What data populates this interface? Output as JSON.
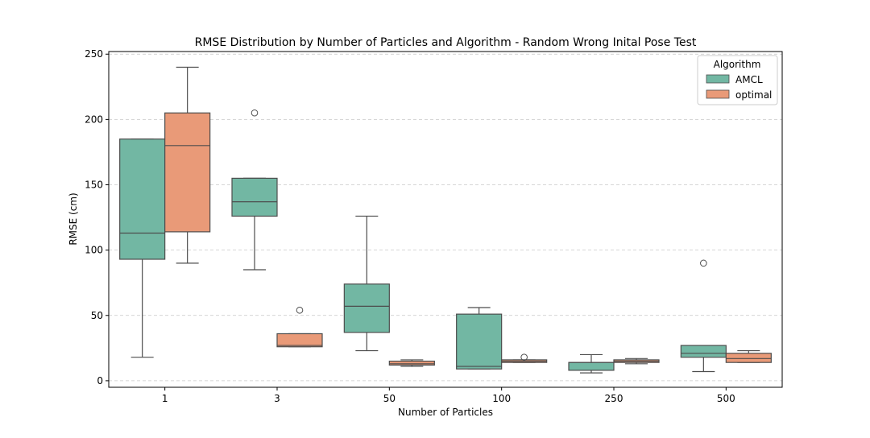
{
  "chart_data": {
    "type": "box",
    "title": "RMSE Distribution by Number of Particles and Algorithm - Random Wrong Inital Pose Test",
    "xlabel": "Number of Particles",
    "ylabel": "RMSE (cm)",
    "ylim": [
      -5,
      252
    ],
    "yticks": [
      0,
      50,
      100,
      150,
      200,
      250
    ],
    "categories": [
      "1",
      "3",
      "50",
      "100",
      "250",
      "500"
    ],
    "grid": "y-dashed",
    "legend": {
      "title": "Algorithm",
      "placement": "top-right"
    },
    "series": [
      {
        "name": "AMCL",
        "color": "#72b7a3",
        "boxes": [
          {
            "whisker_low": 18,
            "q1": 93,
            "median": 113,
            "q3": 185,
            "whisker_high": 185,
            "outliers": []
          },
          {
            "whisker_low": 85,
            "q1": 126,
            "median": 137,
            "q3": 155,
            "whisker_high": 155,
            "outliers": [
              205
            ]
          },
          {
            "whisker_low": 23,
            "q1": 37,
            "median": 57,
            "q3": 74,
            "whisker_high": 126,
            "outliers": []
          },
          {
            "whisker_low": 9,
            "q1": 9,
            "median": 11,
            "q3": 51,
            "whisker_high": 56,
            "outliers": []
          },
          {
            "whisker_low": 6,
            "q1": 8,
            "median": 14,
            "q3": 14,
            "whisker_high": 20,
            "outliers": []
          },
          {
            "whisker_low": 7,
            "q1": 18,
            "median": 21,
            "q3": 27,
            "whisker_high": 27,
            "outliers": [
              90
            ]
          }
        ]
      },
      {
        "name": "optimal",
        "color": "#e99a78",
        "boxes": [
          {
            "whisker_low": 90,
            "q1": 114,
            "median": 180,
            "q3": 205,
            "whisker_high": 240,
            "outliers": []
          },
          {
            "whisker_low": 26,
            "q1": 26,
            "median": 27,
            "q3": 36,
            "whisker_high": 36,
            "outliers": [
              54
            ]
          },
          {
            "whisker_low": 11,
            "q1": 12,
            "median": 13,
            "q3": 15,
            "whisker_high": 16,
            "outliers": []
          },
          {
            "whisker_low": 14,
            "q1": 14,
            "median": 15,
            "q3": 16,
            "whisker_high": 16,
            "outliers": [
              18
            ]
          },
          {
            "whisker_low": 13,
            "q1": 14,
            "median": 15,
            "q3": 16,
            "whisker_high": 17,
            "outliers": []
          },
          {
            "whisker_low": 14,
            "q1": 14,
            "median": 17,
            "q3": 21,
            "whisker_high": 23,
            "outliers": []
          }
        ]
      }
    ]
  }
}
